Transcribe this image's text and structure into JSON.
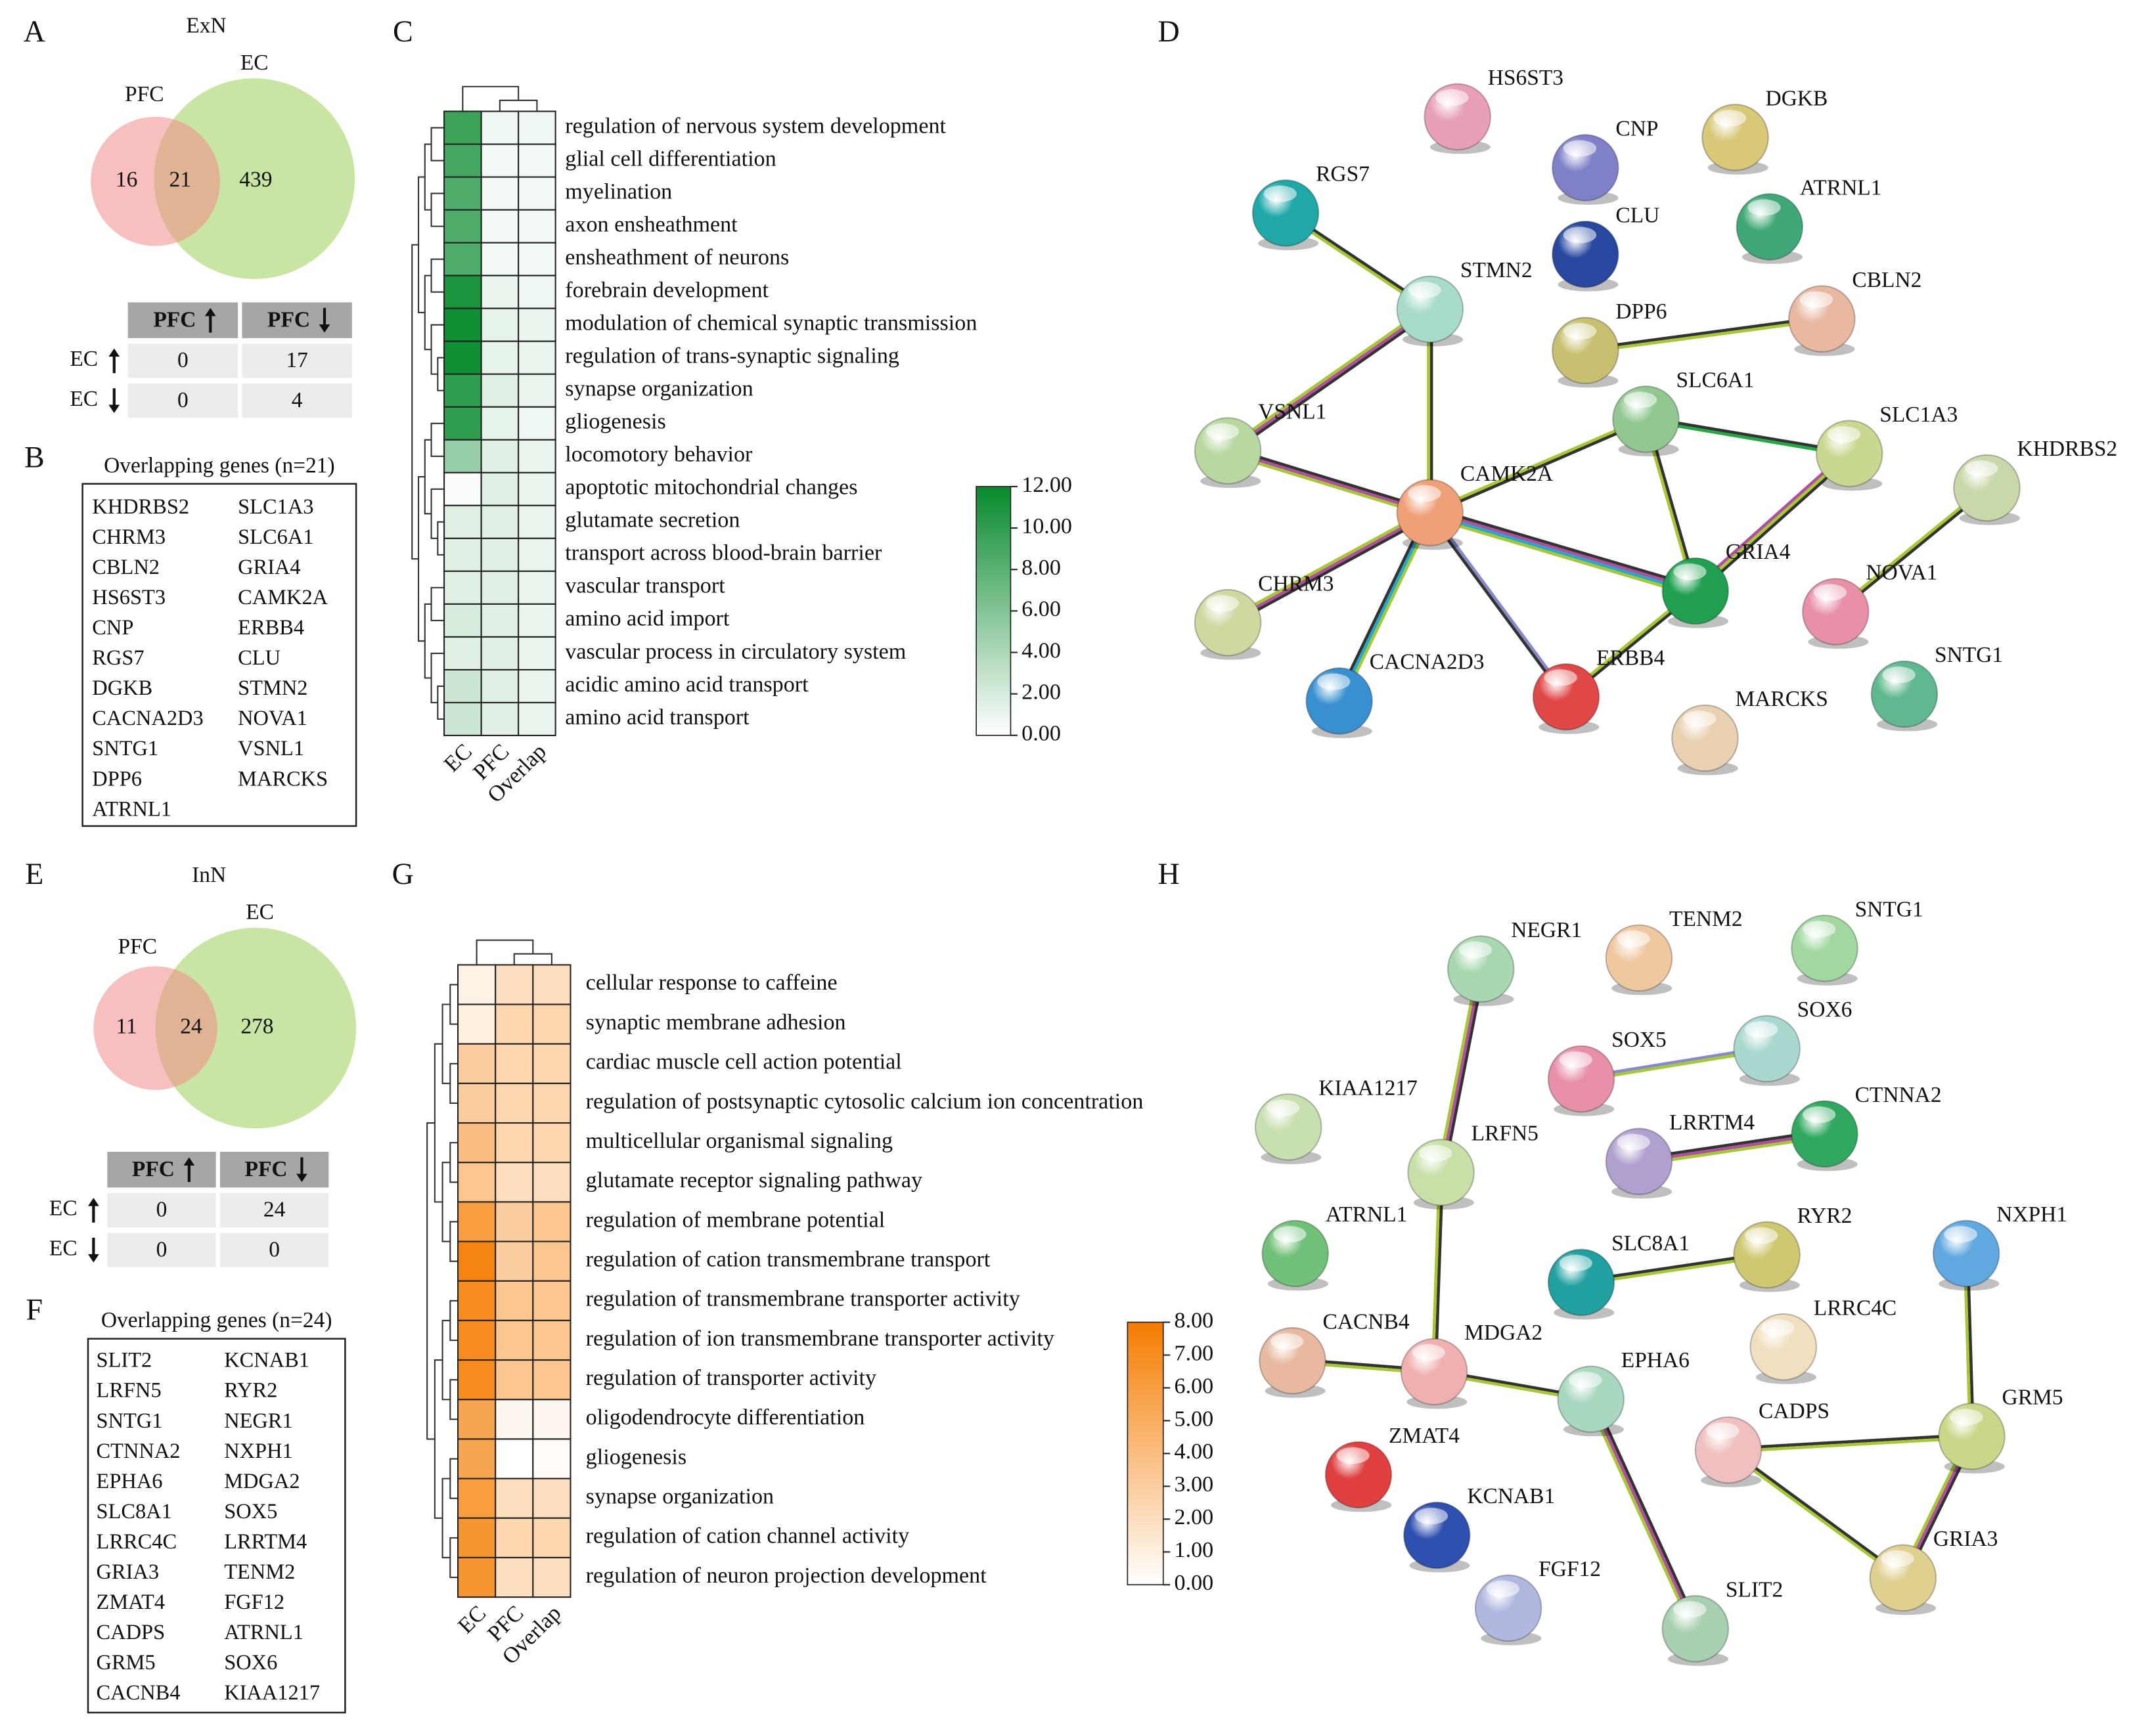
{
  "panel_labels": [
    "A",
    "B",
    "C",
    "D",
    "E",
    "F",
    "G",
    "H"
  ],
  "exn": {
    "venn": {
      "title": "ExN",
      "left_label": "PFC",
      "right_label": "EC",
      "left_only": 16,
      "overlap": 21,
      "right_only": 439,
      "left_color": "#f28b8b",
      "right_color": "#c9e5a3"
    },
    "table": {
      "col_headers": [
        "PFC",
        "PFC"
      ],
      "row_headers": [
        "EC",
        "EC"
      ],
      "cells": [
        [
          0,
          17
        ],
        [
          0,
          4
        ]
      ],
      "cell_colors": [
        [
          "#1a9e50",
          "#e377a8"
        ],
        [
          "#e8202a",
          "#2aa8d8"
        ]
      ]
    },
    "genes": {
      "title": "Overlapping genes (n=21)",
      "list": [
        {
          "name": "KHDRBS2",
          "color": "#e377a8"
        },
        {
          "name": "CHRM3",
          "color": "#e377a8"
        },
        {
          "name": "CBLN2",
          "color": "#e377a8"
        },
        {
          "name": "HS6ST3",
          "color": "#e377a8"
        },
        {
          "name": "CNP",
          "color": "#e377a8"
        },
        {
          "name": "RGS7",
          "color": "#e377a8"
        },
        {
          "name": "DGKB",
          "color": "#e377a8"
        },
        {
          "name": "CACNA2D3",
          "color": "#e377a8"
        },
        {
          "name": "SNTG1",
          "color": "#e377a8"
        },
        {
          "name": "DPP6",
          "color": "#e377a8"
        },
        {
          "name": "ATRNL1",
          "color": "#e377a8"
        },
        {
          "name": "SLC1A3",
          "color": "#e377a8"
        },
        {
          "name": "SLC6A1",
          "color": "#e377a8"
        },
        {
          "name": "GRIA4",
          "color": "#e377a8"
        },
        {
          "name": "CAMK2A",
          "color": "#e377a8"
        },
        {
          "name": "ERBB4",
          "color": "#e377a8"
        },
        {
          "name": "CLU",
          "color": "#e377a8"
        },
        {
          "name": "STMN2",
          "color": "#1aa0d8"
        },
        {
          "name": "NOVA1",
          "color": "#1aa0d8"
        },
        {
          "name": "VSNL1",
          "color": "#1aa0d8"
        },
        {
          "name": "MARCKS",
          "color": "#1aa0d8"
        }
      ]
    },
    "heatmap": {
      "columns": [
        "EC",
        "PFC",
        "Overlap"
      ],
      "terms": [
        "regulation of nervous system development",
        "glial cell differentiation",
        "myelination",
        "axon ensheathment",
        "ensheathment of neurons",
        "forebrain development",
        "modulation of chemical synaptic transmission",
        "regulation of trans-synaptic signaling",
        "synapse organization",
        "gliogenesis",
        "locomotory behavior",
        "apoptotic mitochondrial changes",
        "glutamate secretion",
        "transport across blood-brain barrier",
        "vascular transport",
        "amino acid import",
        "vascular process in circulatory system",
        "acidic amino acid transport",
        "amino acid transport"
      ],
      "values": [
        [
          9.5,
          0.8,
          0.8
        ],
        [
          9,
          0.6,
          0.6
        ],
        [
          8.5,
          0.6,
          0.6
        ],
        [
          8.5,
          0.6,
          0.6
        ],
        [
          8.5,
          0.6,
          0.6
        ],
        [
          11,
          1,
          0.8
        ],
        [
          11.5,
          1.2,
          1
        ],
        [
          11.5,
          1.2,
          1
        ],
        [
          10,
          1.5,
          1
        ],
        [
          10,
          1.2,
          0.8
        ],
        [
          5,
          1.5,
          1
        ],
        [
          0.2,
          1.5,
          1
        ],
        [
          1.5,
          1.5,
          1
        ],
        [
          1.5,
          1.5,
          1
        ],
        [
          1.5,
          1.5,
          1
        ],
        [
          2,
          1.5,
          1
        ],
        [
          1.5,
          1.5,
          1
        ],
        [
          2.5,
          1.5,
          1
        ],
        [
          2.5,
          1.5,
          1
        ]
      ],
      "clim": [
        0,
        12
      ],
      "max_color": "#078a2c",
      "colorbar_ticks": [
        {
          "value": 12,
          "label": "12.00"
        },
        {
          "value": 10,
          "label": "10.00"
        },
        {
          "value": 8,
          "label": "8.00"
        },
        {
          "value": 6,
          "label": "6.00"
        },
        {
          "value": 4,
          "label": "4.00"
        },
        {
          "value": 2,
          "label": "2.00"
        },
        {
          "value": 0,
          "label": "0.00"
        }
      ]
    },
    "network": {
      "nodes": [
        {
          "label": "HS6ST3",
          "color": "#e8a0b8"
        },
        {
          "label": "CNP",
          "color": "#8080c8"
        },
        {
          "label": "DGKB",
          "color": "#d8c878"
        },
        {
          "label": "RGS7",
          "color": "#20a8a8"
        },
        {
          "label": "CLU",
          "color": "#2848a0"
        },
        {
          "label": "ATRNL1",
          "color": "#40a878"
        },
        {
          "label": "STMN2",
          "color": "#a8dcc8"
        },
        {
          "label": "CBLN2",
          "color": "#e8b8a0"
        },
        {
          "label": "DPP6",
          "color": "#c8c070"
        },
        {
          "label": "SLC6A1",
          "color": "#90c890"
        },
        {
          "label": "VSNL1",
          "color": "#b8d8a0"
        },
        {
          "label": "SLC1A3",
          "color": "#c8d890"
        },
        {
          "label": "KHDRBS2",
          "color": "#c8d8a8"
        },
        {
          "label": "CAMK2A",
          "color": "#f0a078"
        },
        {
          "label": "GRIA4",
          "color": "#20a050"
        },
        {
          "label": "NOVA1",
          "color": "#e890a8"
        },
        {
          "label": "CHRM3",
          "color": "#d0d8a0"
        },
        {
          "label": "CACNA2D3",
          "color": "#3890d0"
        },
        {
          "label": "ERBB4",
          "color": "#e04848"
        },
        {
          "label": "SNTG1",
          "color": "#60b890"
        },
        {
          "label": "MARCKS",
          "color": "#e8d0b0"
        }
      ]
    }
  },
  "inn": {
    "venn": {
      "title": "InN",
      "left_label": "PFC",
      "right_label": "EC",
      "left_only": 11,
      "overlap": 24,
      "right_only": 278,
      "left_color": "#f28b8b",
      "right_color": "#c9e5a3"
    },
    "table": {
      "col_headers": [
        "PFC",
        "PFC"
      ],
      "row_headers": [
        "EC",
        "EC"
      ],
      "cells": [
        [
          0,
          24
        ],
        [
          0,
          0
        ]
      ],
      "cell_colors": [
        [
          "#1a9e50",
          "#e377a8"
        ],
        [
          "#e8202a",
          "#2aa8d8"
        ]
      ]
    },
    "genes": {
      "title": "Overlapping genes (n=24)",
      "list": [
        {
          "name": "SLIT2",
          "color": "#e377a8"
        },
        {
          "name": "LRFN5",
          "color": "#e377a8"
        },
        {
          "name": "SNTG1",
          "color": "#e377a8"
        },
        {
          "name": "CTNNA2",
          "color": "#e377a8"
        },
        {
          "name": "EPHA6",
          "color": "#e377a8"
        },
        {
          "name": "SLC8A1",
          "color": "#e377a8"
        },
        {
          "name": "LRRC4C",
          "color": "#e377a8"
        },
        {
          "name": "GRIA3",
          "color": "#e377a8"
        },
        {
          "name": "ZMAT4",
          "color": "#e377a8"
        },
        {
          "name": "CADPS",
          "color": "#e377a8"
        },
        {
          "name": "GRM5",
          "color": "#e377a8"
        },
        {
          "name": "CACNB4",
          "color": "#e377a8"
        },
        {
          "name": "KCNAB1",
          "color": "#e377a8"
        },
        {
          "name": "RYR2",
          "color": "#e377a8"
        },
        {
          "name": "NEGR1",
          "color": "#e377a8"
        },
        {
          "name": "NXPH1",
          "color": "#e377a8"
        },
        {
          "name": "MDGA2",
          "color": "#e377a8"
        },
        {
          "name": "SOX5",
          "color": "#e377a8"
        },
        {
          "name": "LRRTM4",
          "color": "#e377a8"
        },
        {
          "name": "TENM2",
          "color": "#e377a8"
        },
        {
          "name": "FGF12",
          "color": "#e377a8"
        },
        {
          "name": "ATRNL1",
          "color": "#e377a8"
        },
        {
          "name": "SOX6",
          "color": "#e377a8"
        },
        {
          "name": "KIAA1217",
          "color": "#e377a8"
        }
      ]
    },
    "heatmap": {
      "columns": [
        "EC",
        "PFC",
        "Overlap"
      ],
      "terms": [
        "cellular response to caffeine",
        "synaptic membrane adhesion",
        "cardiac muscle cell action potential",
        "regulation of postsynaptic cytosolic calcium ion concentration",
        "multicellular organismal signaling",
        "glutamate receptor signaling pathway",
        "regulation of membrane potential",
        "regulation of cation transmembrane transport",
        "regulation of transmembrane transporter activity",
        "regulation of ion transmembrane transporter activity",
        "regulation of transporter activity",
        "oligodendrocyte differentiation",
        "gliogenesis",
        "synapse organization",
        "regulation of cation channel activity",
        "regulation of neuron projection development"
      ],
      "values": [
        [
          0.8,
          2,
          2
        ],
        [
          1,
          2.5,
          2.5
        ],
        [
          3,
          2.5,
          2.5
        ],
        [
          3,
          2.5,
          2.5
        ],
        [
          4,
          2.5,
          2.5
        ],
        [
          3.5,
          2,
          2
        ],
        [
          6,
          3,
          3.5
        ],
        [
          7.5,
          3,
          3.5
        ],
        [
          7,
          3.5,
          3.5
        ],
        [
          7,
          3.5,
          3.5
        ],
        [
          7,
          3.5,
          3.5
        ],
        [
          5.5,
          0.5,
          0.5
        ],
        [
          5.5,
          0,
          0.2
        ],
        [
          6,
          2,
          2
        ],
        [
          6.5,
          2.5,
          2.5
        ],
        [
          6.5,
          2,
          2
        ]
      ],
      "clim": [
        0,
        8
      ],
      "max_color": "#f57c00",
      "colorbar_ticks": [
        {
          "value": 8,
          "label": "8.00"
        },
        {
          "value": 7,
          "label": "7.00"
        },
        {
          "value": 6,
          "label": "6.00"
        },
        {
          "value": 5,
          "label": "5.00"
        },
        {
          "value": 4,
          "label": "4.00"
        },
        {
          "value": 3,
          "label": "3.00"
        },
        {
          "value": 2,
          "label": "2.00"
        },
        {
          "value": 1,
          "label": "1.00"
        },
        {
          "value": 0,
          "label": "0.00"
        }
      ]
    },
    "network": {
      "nodes": [
        {
          "label": "NEGR1",
          "color": "#a8d8b0"
        },
        {
          "label": "TENM2",
          "color": "#f0c8a0"
        },
        {
          "label": "SNTG1",
          "color": "#a0d8a0"
        },
        {
          "label": "SOX5",
          "color": "#e890a8"
        },
        {
          "label": "SOX6",
          "color": "#a8d8d0"
        },
        {
          "label": "KIAA1217",
          "color": "#c8e0b0"
        },
        {
          "label": "LRFN5",
          "color": "#c8e0a8"
        },
        {
          "label": "LRRTM4",
          "color": "#b0a0d0"
        },
        {
          "label": "CTNNA2",
          "color": "#30a860"
        },
        {
          "label": "ATRNL1",
          "color": "#70c078"
        },
        {
          "label": "SLC8A1",
          "color": "#20a0a0"
        },
        {
          "label": "RYR2",
          "color": "#d0c870"
        },
        {
          "label": "NXPH1",
          "color": "#60a8e0"
        },
        {
          "label": "LRRC4C",
          "color": "#f0e0c0"
        },
        {
          "label": "CACNB4",
          "color": "#e8b8a0"
        },
        {
          "label": "MDGA2",
          "color": "#f0b0b0"
        },
        {
          "label": "EPHA6",
          "color": "#a8d8c0"
        },
        {
          "label": "CADPS",
          "color": "#f0c0c0"
        },
        {
          "label": "GRM5",
          "color": "#c8d888"
        },
        {
          "label": "ZMAT4",
          "color": "#e04040"
        },
        {
          "label": "KCNAB1",
          "color": "#3050b0"
        },
        {
          "label": "FGF12",
          "color": "#b0b8e0"
        },
        {
          "label": "SLIT2",
          "color": "#a8d0b0"
        },
        {
          "label": "GRIA3",
          "color": "#e0d090"
        }
      ]
    }
  }
}
